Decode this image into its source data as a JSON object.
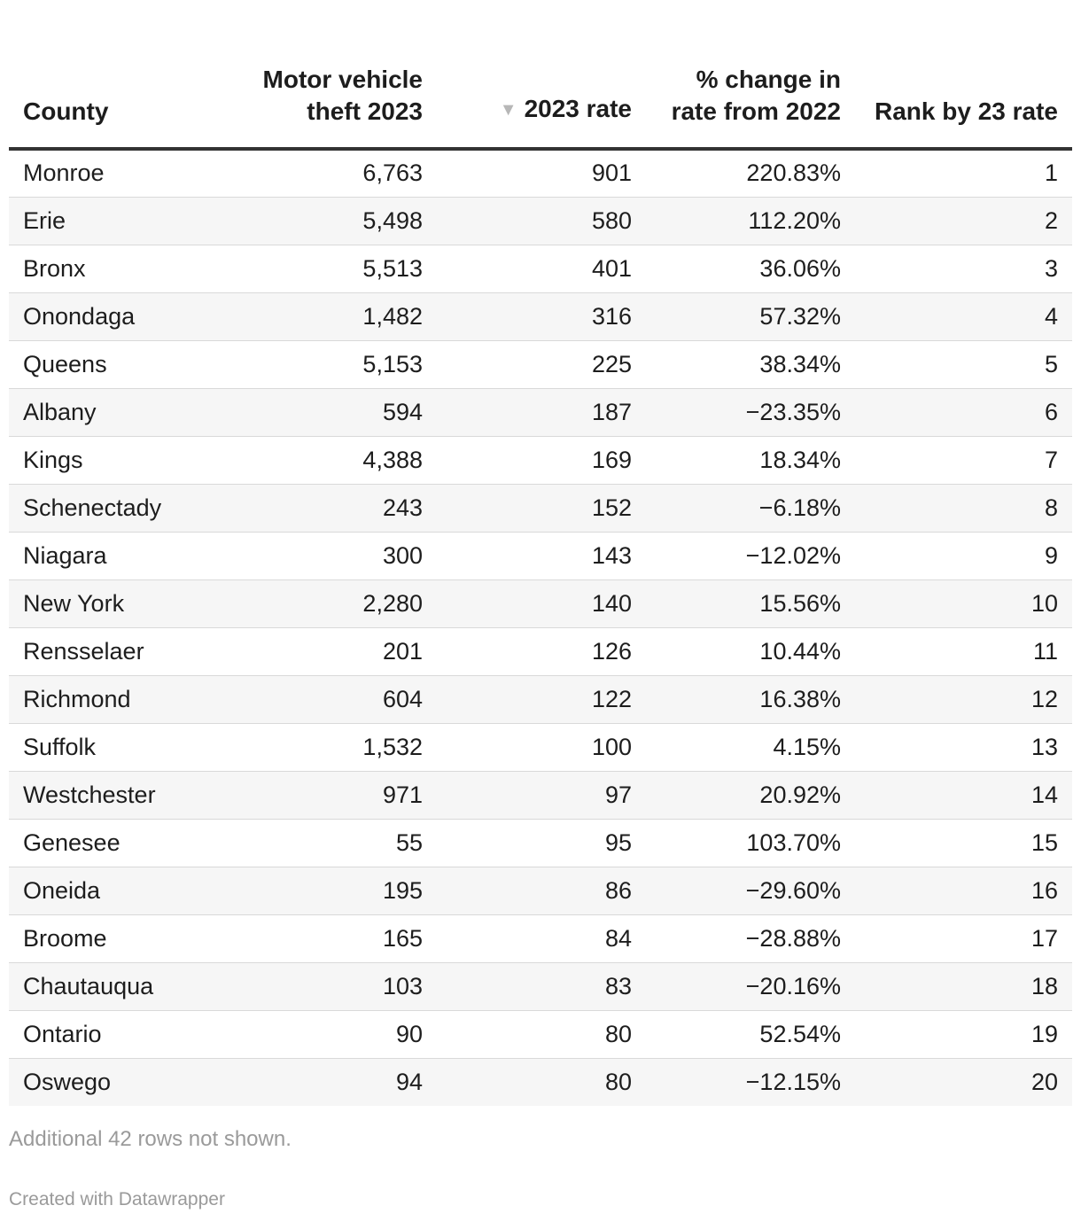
{
  "chart_data": {
    "type": "table",
    "columns": [
      {
        "key": "county",
        "label": "County",
        "align": "left"
      },
      {
        "key": "theft",
        "label": "Motor vehicle theft 2023",
        "align": "right"
      },
      {
        "key": "rate",
        "label": "2023 rate",
        "align": "right",
        "sorted": "descending",
        "sort_icon": "sort-descending-icon"
      },
      {
        "key": "change",
        "label": "% change in rate from 2022",
        "align": "right"
      },
      {
        "key": "rank",
        "label": "Rank by 23 rate",
        "align": "right"
      }
    ],
    "rows": [
      {
        "county": "Monroe",
        "theft": "6,763",
        "rate": "901",
        "change": "220.83%",
        "rank": "1"
      },
      {
        "county": "Erie",
        "theft": "5,498",
        "rate": "580",
        "change": "112.20%",
        "rank": "2"
      },
      {
        "county": "Bronx",
        "theft": "5,513",
        "rate": "401",
        "change": "36.06%",
        "rank": "3"
      },
      {
        "county": "Onondaga",
        "theft": "1,482",
        "rate": "316",
        "change": "57.32%",
        "rank": "4"
      },
      {
        "county": "Queens",
        "theft": "5,153",
        "rate": "225",
        "change": "38.34%",
        "rank": "5"
      },
      {
        "county": "Albany",
        "theft": "594",
        "rate": "187",
        "change": "−23.35%",
        "rank": "6"
      },
      {
        "county": "Kings",
        "theft": "4,388",
        "rate": "169",
        "change": "18.34%",
        "rank": "7"
      },
      {
        "county": "Schenectady",
        "theft": "243",
        "rate": "152",
        "change": "−6.18%",
        "rank": "8"
      },
      {
        "county": "Niagara",
        "theft": "300",
        "rate": "143",
        "change": "−12.02%",
        "rank": "9"
      },
      {
        "county": "New York",
        "theft": "2,280",
        "rate": "140",
        "change": "15.56%",
        "rank": "10"
      },
      {
        "county": "Rensselaer",
        "theft": "201",
        "rate": "126",
        "change": "10.44%",
        "rank": "11"
      },
      {
        "county": "Richmond",
        "theft": "604",
        "rate": "122",
        "change": "16.38%",
        "rank": "12"
      },
      {
        "county": "Suffolk",
        "theft": "1,532",
        "rate": "100",
        "change": "4.15%",
        "rank": "13"
      },
      {
        "county": "Westchester",
        "theft": "971",
        "rate": "97",
        "change": "20.92%",
        "rank": "14"
      },
      {
        "county": "Genesee",
        "theft": "55",
        "rate": "95",
        "change": "103.70%",
        "rank": "15"
      },
      {
        "county": "Oneida",
        "theft": "195",
        "rate": "86",
        "change": "−29.60%",
        "rank": "16"
      },
      {
        "county": "Broome",
        "theft": "165",
        "rate": "84",
        "change": "−28.88%",
        "rank": "17"
      },
      {
        "county": "Chautauqua",
        "theft": "103",
        "rate": "83",
        "change": "−20.16%",
        "rank": "18"
      },
      {
        "county": "Ontario",
        "theft": "90",
        "rate": "80",
        "change": "52.54%",
        "rank": "19"
      },
      {
        "county": "Oswego",
        "theft": "94",
        "rate": "80",
        "change": "−12.15%",
        "rank": "20"
      }
    ],
    "note": "Additional 42 rows not shown.",
    "credit": "Created with Datawrapper"
  }
}
